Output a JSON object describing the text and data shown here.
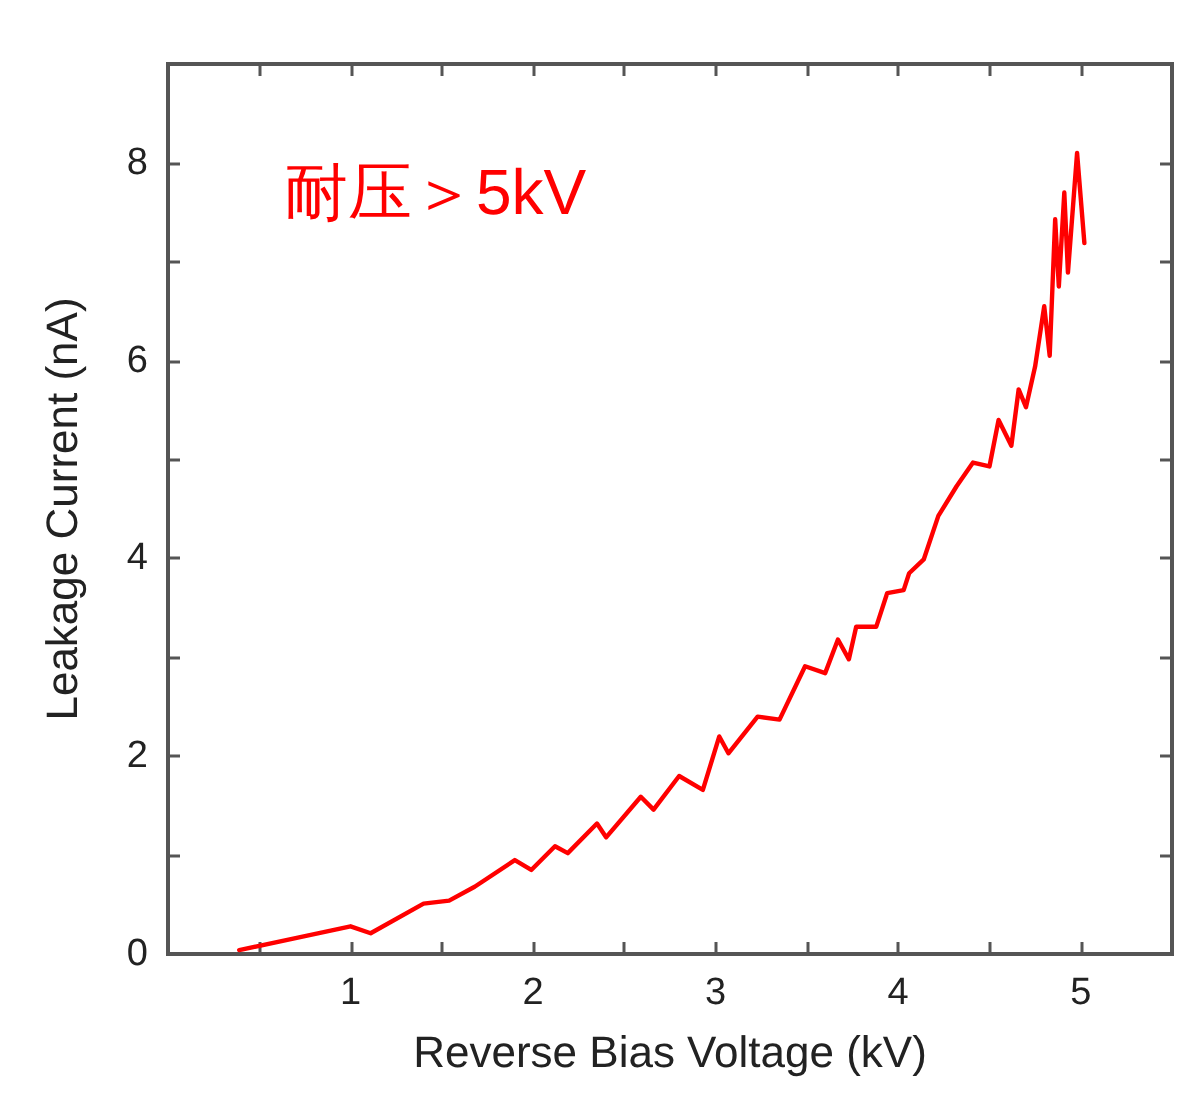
{
  "chart_data": {
    "type": "line",
    "xlabel": "Reverse Bias Voltage (kV)",
    "ylabel": "Leakage Current (nA)",
    "annotations": [
      "耐压＞5kV"
    ],
    "xlim": [
      0,
      5.5
    ],
    "ylim": [
      0,
      9
    ],
    "xticks": [
      {
        "value": 0.5,
        "label": null
      },
      1,
      {
        "value": 1.5,
        "label": null
      },
      2,
      {
        "value": 2.5,
        "label": null
      },
      3,
      {
        "value": 3.5,
        "label": null
      },
      4,
      {
        "value": 4.5,
        "label": null
      },
      5
    ],
    "yticks": [
      0,
      {
        "value": 1,
        "label": null
      },
      2,
      {
        "value": 3,
        "label": null
      },
      4,
      {
        "value": 5,
        "label": null
      },
      6,
      {
        "value": 7,
        "label": null
      },
      8
    ],
    "grid": false,
    "marker": "none",
    "line_style": "solid",
    "series": [
      {
        "color": "#ff0000",
        "x": [
          0.39,
          0.75,
          1.0,
          1.11,
          1.4,
          1.54,
          1.68,
          1.9,
          1.99,
          2.12,
          2.19,
          2.35,
          2.4,
          2.59,
          2.66,
          2.8,
          2.93,
          3.02,
          3.07,
          3.23,
          3.35,
          3.49,
          3.6,
          3.67,
          3.73,
          3.77,
          3.88,
          3.94,
          4.03,
          4.06,
          4.14,
          4.22,
          4.32,
          4.41,
          4.5,
          4.55,
          4.62,
          4.66,
          4.7,
          4.75,
          4.8,
          4.83,
          4.86,
          4.88,
          4.91,
          4.93,
          4.98,
          5.02
        ],
        "values": [
          0.04,
          0.18,
          0.28,
          0.21,
          0.51,
          0.54,
          0.68,
          0.95,
          0.85,
          1.09,
          1.02,
          1.32,
          1.18,
          1.59,
          1.46,
          1.8,
          1.66,
          2.2,
          2.03,
          2.4,
          2.37,
          2.91,
          2.84,
          3.18,
          2.98,
          3.31,
          3.31,
          3.65,
          3.68,
          3.85,
          3.99,
          4.43,
          4.73,
          4.97,
          4.93,
          5.4,
          5.14,
          5.71,
          5.53,
          5.94,
          6.55,
          6.05,
          7.43,
          6.75,
          7.7,
          6.89,
          8.1,
          7.19
        ]
      }
    ]
  }
}
